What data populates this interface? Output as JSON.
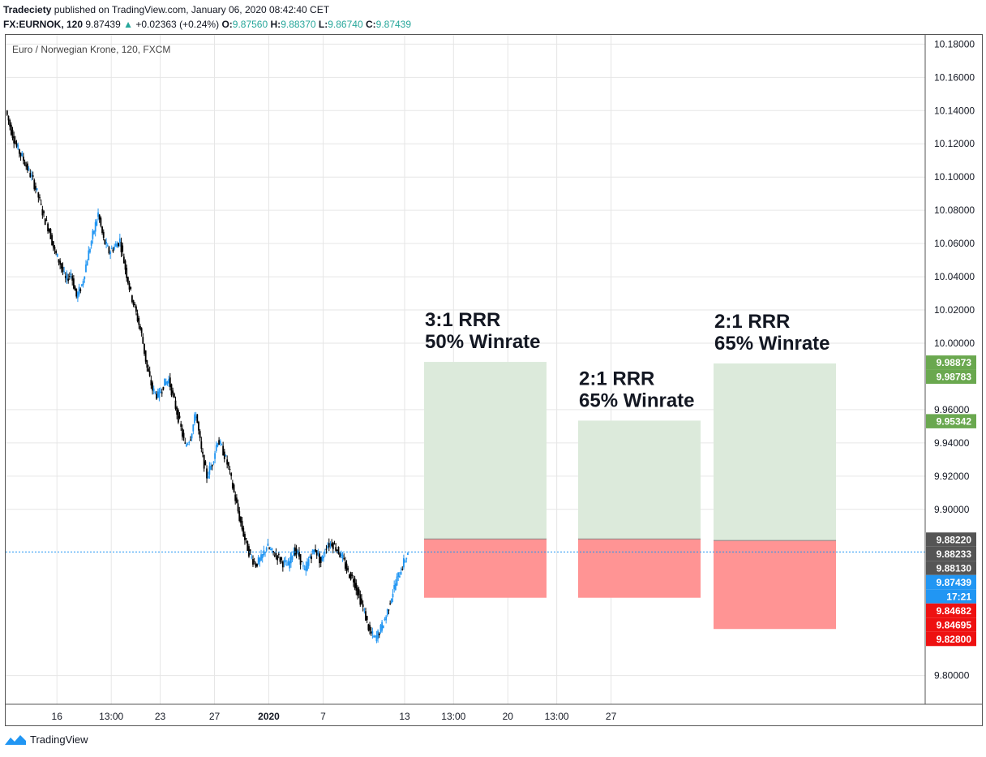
{
  "header": {
    "author": "Tradeciety",
    "published_text": " published on TradingView.com, January 06, 2020 08:42:40 CET",
    "symbol": "FX:EURNOK, 120",
    "last": "9.87439",
    "change_arrow": "▲",
    "change": "+0.02363 (+0.24%)",
    "o_label": "O:",
    "o_value": "9.87560",
    "h_label": "H:",
    "h_value": "9.88370",
    "l_label": "L:",
    "l_value": "9.86740",
    "c_label": "C:",
    "c_value": "9.87439"
  },
  "footer": {
    "brand": "TradingView",
    "logo_icon": "tradingview-logo-icon"
  },
  "colors": {
    "up_candle": "#2196f3",
    "down_candle": "#000000",
    "profit_zone": "#dceadb",
    "loss_zone": "#ff9494",
    "green_label": "#6aa84f",
    "red_label": "#ee1111",
    "dark_label": "#555555",
    "blue_label": "#2196f3",
    "grid": "#e6e6e6"
  },
  "chart_data": {
    "type": "candlestick",
    "title": "Euro / Norwegian Krone, 120, FXCM",
    "y_range": [
      9.78,
      10.19
    ],
    "y_ticks": [
      "10.18000",
      "10.16000",
      "10.14000",
      "10.12000",
      "10.10000",
      "10.08000",
      "10.06000",
      "10.04000",
      "10.02000",
      "10.00000",
      "9.96000",
      "9.94000",
      "9.92000",
      "9.90000",
      "9.80000"
    ],
    "y_tick_values": [
      10.18,
      10.16,
      10.14,
      10.12,
      10.1,
      10.08,
      10.06,
      10.04,
      10.02,
      10.0,
      9.96,
      9.94,
      9.92,
      9.9,
      9.8
    ],
    "x_ticks": [
      {
        "label": "16",
        "bold": false
      },
      {
        "label": "13:00",
        "bold": false
      },
      {
        "label": "23",
        "bold": false
      },
      {
        "label": "27",
        "bold": false
      },
      {
        "label": "2020",
        "bold": true
      },
      {
        "label": "7",
        "bold": false
      },
      {
        "label": "13",
        "bold": false
      },
      {
        "label": "13:00",
        "bold": false
      },
      {
        "label": "20",
        "bold": false
      },
      {
        "label": "13:00",
        "bold": false
      },
      {
        "label": "27",
        "bold": false
      }
    ],
    "x_tick_index": [
      6,
      16,
      25,
      35,
      45,
      55,
      70,
      79,
      89,
      98,
      108
    ],
    "last_price": 9.87439,
    "price_path": [
      10.14,
      10.128,
      10.118,
      10.112,
      10.105,
      10.098,
      10.088,
      10.076,
      10.068,
      10.055,
      10.048,
      10.038,
      10.042,
      10.028,
      10.035,
      10.051,
      10.065,
      10.078,
      10.062,
      10.055,
      10.058,
      10.062,
      10.045,
      10.03,
      10.018,
      10.005,
      9.985,
      9.972,
      9.968,
      9.975,
      9.978,
      9.965,
      9.952,
      9.938,
      9.944,
      9.958,
      9.935,
      9.92,
      9.928,
      9.942,
      9.935,
      9.925,
      9.91,
      9.895,
      9.882,
      9.872,
      9.867,
      9.87,
      9.878,
      9.874,
      9.872,
      9.868,
      9.866,
      9.876,
      9.872,
      9.862,
      9.872,
      9.876,
      9.868,
      9.878,
      9.88,
      9.876,
      9.87,
      9.862,
      9.858,
      9.848,
      9.838,
      9.826,
      9.822,
      9.828,
      9.836,
      9.848,
      9.858,
      9.866,
      9.874
    ],
    "position_boxes": [
      {
        "id": "trade1",
        "entry": 9.8822,
        "target": 9.98873,
        "stop": 9.84682,
        "ratio_label": "3:1 RRR",
        "winrate_label": "50% Winrate"
      },
      {
        "id": "trade2",
        "entry": 9.8822,
        "target": 9.95342,
        "stop": 9.84682,
        "ratio_label": "2:1 RRR",
        "winrate_label": "65% Winrate"
      },
      {
        "id": "trade3",
        "entry": 9.8813,
        "target": 9.98783,
        "stop": 9.828,
        "ratio_label": "2:1 RRR",
        "winrate_label": "65% Winrate"
      }
    ],
    "price_labels": [
      {
        "value": 9.98873,
        "text": "9.98873",
        "style": "green"
      },
      {
        "value": 9.98783,
        "text": "9.98783",
        "style": "green"
      },
      {
        "value": 9.95342,
        "text": "9.95342",
        "style": "green"
      },
      {
        "value": 9.8822,
        "text": "9.88220",
        "style": "dark"
      },
      {
        "value": 9.88233,
        "text": "9.88233",
        "style": "dark"
      },
      {
        "value": 9.8813,
        "text": "9.88130",
        "style": "dark"
      },
      {
        "value": 9.87439,
        "text": "9.87439",
        "style": "blue"
      },
      {
        "value": 9.8665,
        "text": "17:21",
        "style": "blue"
      },
      {
        "value": 9.84682,
        "text": "9.84682",
        "style": "red"
      },
      {
        "value": 9.84695,
        "text": "9.84695",
        "style": "red"
      },
      {
        "value": 9.828,
        "text": "9.82800",
        "style": "red"
      }
    ]
  }
}
